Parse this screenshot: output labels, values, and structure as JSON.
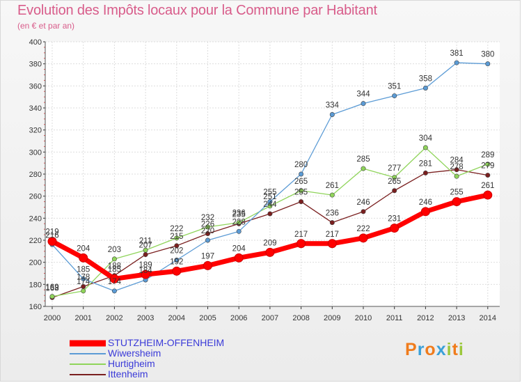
{
  "title": "Evolution des Impôts locaux pour la Commune par Habitant",
  "subtitle": "(en € et par an)",
  "logo": {
    "text": "Proxiti",
    "letters": [
      {
        "char": "P",
        "color": "#f07c1c"
      },
      {
        "char": "r",
        "color": "#3aa0d8"
      },
      {
        "char": "o",
        "color": "#f07c1c"
      },
      {
        "char": "x",
        "color": "#3aa0d8"
      },
      {
        "char": "i",
        "color": "#9cc83c"
      },
      {
        "char": "t",
        "color": "#f07c1c"
      },
      {
        "char": "i",
        "color": "#9cc83c"
      }
    ]
  },
  "chart_data": {
    "type": "line",
    "title": "Evolution des Impôts locaux pour la Commune par Habitant",
    "subtitle": "(en € et par an)",
    "x": [
      "2000",
      "2001",
      "2002",
      "2003",
      "2004",
      "2005",
      "2006",
      "2007",
      "2008",
      "2009",
      "2010",
      "2011",
      "2012",
      "2013",
      "2014"
    ],
    "ylim": [
      160,
      400
    ],
    "yticks": [
      160,
      180,
      200,
      220,
      240,
      260,
      280,
      300,
      320,
      340,
      360,
      380,
      400
    ],
    "grid": true,
    "legend_position": "bottom-left",
    "series": [
      {
        "name": "STUTZHEIM-OFFENHEIM",
        "color": "#ff0000",
        "values": [
          219,
          204,
          185,
          189,
          192,
          197,
          204,
          209,
          217,
          217,
          222,
          231,
          246,
          255,
          261
        ],
        "labels": [
          "219",
          "204",
          "185",
          "189",
          "192",
          "197",
          "204",
          "209",
          "217",
          "217",
          "222",
          "231",
          "246",
          "255",
          "261"
        ]
      },
      {
        "name": "Wiwersheim",
        "color": "#5b9bd5",
        "values": [
          216,
          185,
          174,
          184,
          202,
          220,
          228,
          255,
          280,
          334,
          344,
          351,
          358,
          381,
          380
        ],
        "labels": [
          "216",
          "185",
          "174",
          "184",
          "202",
          "220",
          "228",
          "255",
          "280",
          "334",
          "344",
          "351",
          "358",
          "381",
          "380"
        ]
      },
      {
        "name": "Hurtigheim",
        "color": "#8fd45a",
        "values": [
          169,
          174,
          203,
          211,
          222,
          232,
          236,
          251,
          265,
          261,
          285,
          277,
          304,
          278,
          289
        ],
        "labels": [
          "169",
          "174",
          "203",
          "211",
          "222",
          "232",
          "236",
          "251",
          "265",
          "261",
          "285",
          "277",
          "304",
          "278",
          "289"
        ]
      },
      {
        "name": "Ittenheim",
        "color": "#7a1f1f",
        "values": [
          168,
          178,
          188,
          207,
          215,
          226,
          235,
          244,
          255,
          236,
          246,
          265,
          281,
          284,
          279
        ],
        "labels": [
          "168",
          "178",
          "188",
          "207",
          "215",
          "226",
          "235",
          "244",
          "255",
          "236",
          "246",
          "265",
          "281",
          "284",
          "279"
        ]
      }
    ]
  }
}
